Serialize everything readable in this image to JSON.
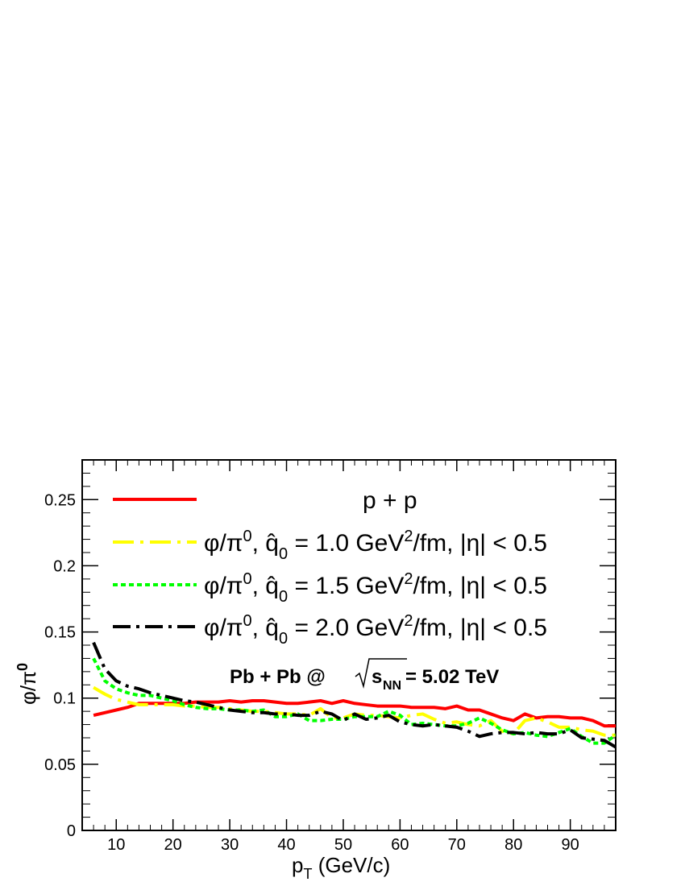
{
  "chart_data": {
    "type": "line",
    "xlabel": "p",
    "xlabel_sub": "T",
    "xlabel_unit": " (GeV/c)",
    "ylabel": "φ/π",
    "ylabel_sup": "0",
    "xlim": [
      4,
      98
    ],
    "ylim": [
      0,
      0.28
    ],
    "xticks": [
      10,
      20,
      30,
      40,
      50,
      60,
      70,
      80,
      90
    ],
    "xtick_labels": [
      "10",
      "20",
      "30",
      "40",
      "50",
      "60",
      "70",
      "80",
      "90"
    ],
    "yticks": [
      0,
      0.05,
      0.1,
      0.15,
      0.2,
      0.25
    ],
    "ytick_labels": [
      "0",
      "0.05",
      "0.1",
      "0.15",
      "0.2",
      "0.25"
    ],
    "annotation": {
      "prefix": "Pb + Pb @ ",
      "sqrt_s": "s",
      "sqrt_sub": "NN",
      "suffix": " = 5.02 TeV"
    },
    "series": [
      {
        "name": "p + p",
        "color": "#ff0000",
        "dash": "solid",
        "legend": {
          "text": "p + p"
        },
        "x": [
          6,
          8,
          10,
          12,
          14,
          16,
          18,
          20,
          22,
          24,
          26,
          28,
          30,
          32,
          34,
          36,
          38,
          40,
          42,
          44,
          46,
          48,
          50,
          52,
          54,
          56,
          58,
          60,
          62,
          64,
          66,
          68,
          70,
          72,
          74,
          76,
          78,
          80,
          82,
          84,
          86,
          88,
          90,
          92,
          94,
          96,
          98
        ],
        "y": [
          0.087,
          0.089,
          0.091,
          0.093,
          0.096,
          0.096,
          0.096,
          0.096,
          0.096,
          0.097,
          0.097,
          0.097,
          0.098,
          0.097,
          0.098,
          0.098,
          0.097,
          0.096,
          0.096,
          0.097,
          0.098,
          0.096,
          0.098,
          0.096,
          0.095,
          0.094,
          0.094,
          0.094,
          0.093,
          0.093,
          0.093,
          0.092,
          0.094,
          0.091,
          0.091,
          0.088,
          0.085,
          0.083,
          0.088,
          0.085,
          0.086,
          0.086,
          0.085,
          0.085,
          0.083,
          0.079,
          0.079
        ]
      },
      {
        "name": "φ/π0, q̂0 = 1.0 GeV2/fm, |η| < 0.5",
        "color": "#ffff00",
        "dash": "longdashdot",
        "legend": {
          "prefix": "φ/π",
          "prefix_sup": "0",
          "q": "q̂",
          "q_sub": "0",
          "mid": " = 1.0 GeV",
          "mid_sup": "2",
          "suffix": "/fm,  |η| < 0.5"
        },
        "x": [
          6,
          8,
          10,
          12,
          14,
          16,
          18,
          20,
          22,
          24,
          26,
          28,
          30,
          32,
          34,
          36,
          38,
          40,
          42,
          44,
          46,
          48,
          50,
          52,
          54,
          56,
          58,
          60,
          62,
          64,
          66,
          68,
          70,
          72,
          74,
          76,
          78,
          80,
          82,
          84,
          86,
          88,
          90,
          92,
          94,
          96,
          98
        ],
        "y": [
          0.108,
          0.103,
          0.099,
          0.097,
          0.095,
          0.095,
          0.095,
          0.095,
          0.094,
          0.094,
          0.093,
          0.093,
          0.092,
          0.091,
          0.09,
          0.09,
          0.089,
          0.088,
          0.088,
          0.087,
          0.092,
          0.085,
          0.085,
          0.088,
          0.087,
          0.087,
          0.086,
          0.085,
          0.087,
          0.088,
          0.084,
          0.081,
          0.082,
          0.08,
          0.079,
          0.083,
          0.075,
          0.073,
          0.083,
          0.085,
          0.082,
          0.078,
          0.078,
          0.076,
          0.075,
          0.072,
          0.072
        ]
      },
      {
        "name": "φ/π0, q̂0 = 1.5 GeV2/fm, |η| < 0.5",
        "color": "#00ff00",
        "dash": "dotted",
        "legend": {
          "prefix": "φ/π",
          "prefix_sup": "0",
          "q": "q̂",
          "q_sub": "0",
          "mid": " = 1.5 GeV",
          "mid_sup": "2",
          "suffix": "/fm,  |η| < 0.5"
        },
        "x": [
          6,
          8,
          10,
          12,
          14,
          16,
          18,
          20,
          22,
          24,
          26,
          28,
          30,
          32,
          34,
          36,
          38,
          40,
          42,
          44,
          46,
          48,
          50,
          52,
          54,
          56,
          58,
          60,
          62,
          64,
          66,
          68,
          70,
          72,
          74,
          76,
          78,
          80,
          82,
          84,
          86,
          88,
          90,
          92,
          94,
          96,
          98
        ],
        "y": [
          0.13,
          0.113,
          0.107,
          0.104,
          0.102,
          0.102,
          0.1,
          0.098,
          0.095,
          0.093,
          0.092,
          0.092,
          0.091,
          0.091,
          0.09,
          0.091,
          0.086,
          0.086,
          0.088,
          0.083,
          0.083,
          0.084,
          0.084,
          0.086,
          0.086,
          0.086,
          0.09,
          0.087,
          0.08,
          0.081,
          0.08,
          0.079,
          0.079,
          0.081,
          0.085,
          0.081,
          0.076,
          0.073,
          0.074,
          0.072,
          0.071,
          0.074,
          0.077,
          0.071,
          0.066,
          0.066,
          0.072
        ]
      },
      {
        "name": "φ/π0, q̂0 = 2.0 GeV2/fm, |η| < 0.5",
        "color": "#000000",
        "dash": "dashdot",
        "legend": {
          "prefix": "φ/π",
          "prefix_sup": "0",
          "q": "q̂",
          "q_sub": "0",
          "mid": " = 2.0 GeV",
          "mid_sup": "2",
          "suffix": "/fm,  |η| < 0.5"
        },
        "x": [
          6,
          8,
          10,
          12,
          14,
          16,
          18,
          20,
          22,
          24,
          26,
          28,
          30,
          32,
          34,
          36,
          38,
          40,
          42,
          44,
          46,
          48,
          50,
          52,
          54,
          56,
          58,
          60,
          62,
          64,
          66,
          68,
          70,
          72,
          74,
          76,
          78,
          80,
          82,
          84,
          86,
          88,
          90,
          92,
          94,
          96,
          98
        ],
        "y": [
          0.142,
          0.122,
          0.113,
          0.109,
          0.107,
          0.104,
          0.102,
          0.1,
          0.098,
          0.097,
          0.095,
          0.093,
          0.091,
          0.09,
          0.089,
          0.089,
          0.088,
          0.088,
          0.087,
          0.087,
          0.09,
          0.088,
          0.083,
          0.088,
          0.084,
          0.085,
          0.087,
          0.082,
          0.08,
          0.079,
          0.08,
          0.079,
          0.078,
          0.075,
          0.071,
          0.073,
          0.074,
          0.074,
          0.073,
          0.074,
          0.073,
          0.073,
          0.076,
          0.07,
          0.069,
          0.068,
          0.063
        ]
      }
    ]
  }
}
